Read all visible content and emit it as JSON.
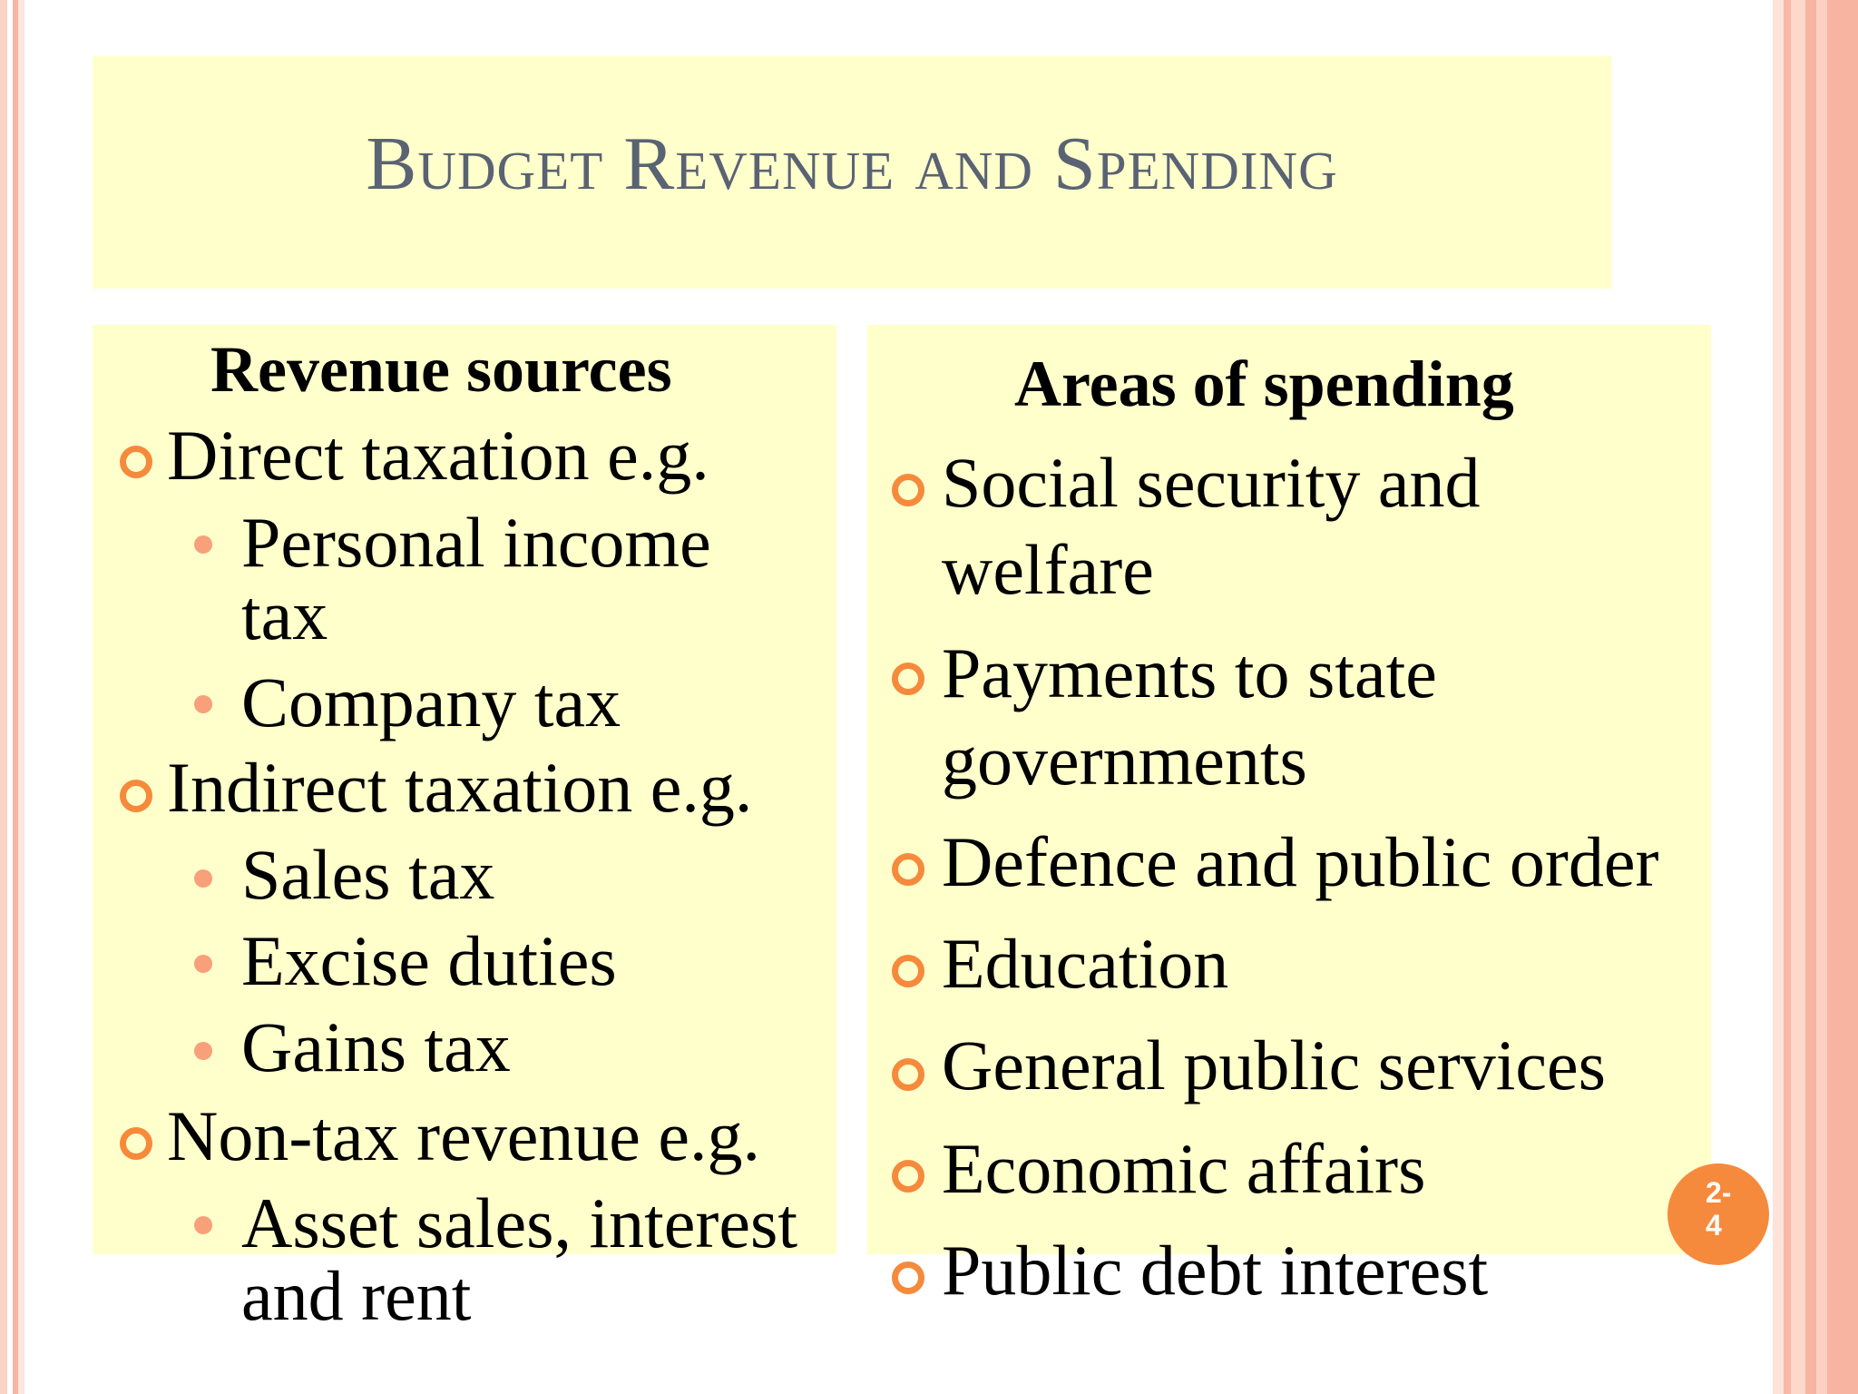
{
  "slide": {
    "title": "Budget Revenue and Spending",
    "page_number": "2-\n4"
  },
  "revenue": {
    "heading": "Revenue sources",
    "items": [
      {
        "label": "Direct taxation e.g.",
        "subitems": [
          "Personal income",
          "tax",
          "Company tax"
        ]
      },
      {
        "label": " Indirect taxation e.g.",
        "subitems": [
          "Sales tax",
          "Excise duties",
          "Gains tax"
        ]
      },
      {
        "label": "Non-tax revenue e.g.",
        "subitems": [
          "Asset sales, interest",
          "and rent"
        ]
      }
    ]
  },
  "spending": {
    "heading": "Areas of spending",
    "items": [
      "Social security and",
      "welfare",
      "Payments to state",
      "governments",
      "Defence and public order",
      "Education",
      "General public services",
      "Economic affairs",
      "Public debt interest"
    ]
  },
  "colors": {
    "panel_bg": "#ffffcc",
    "title_color": "#5a6373",
    "bullet_accent": "#f58a3c",
    "border_accent": "#f6b4a1"
  }
}
